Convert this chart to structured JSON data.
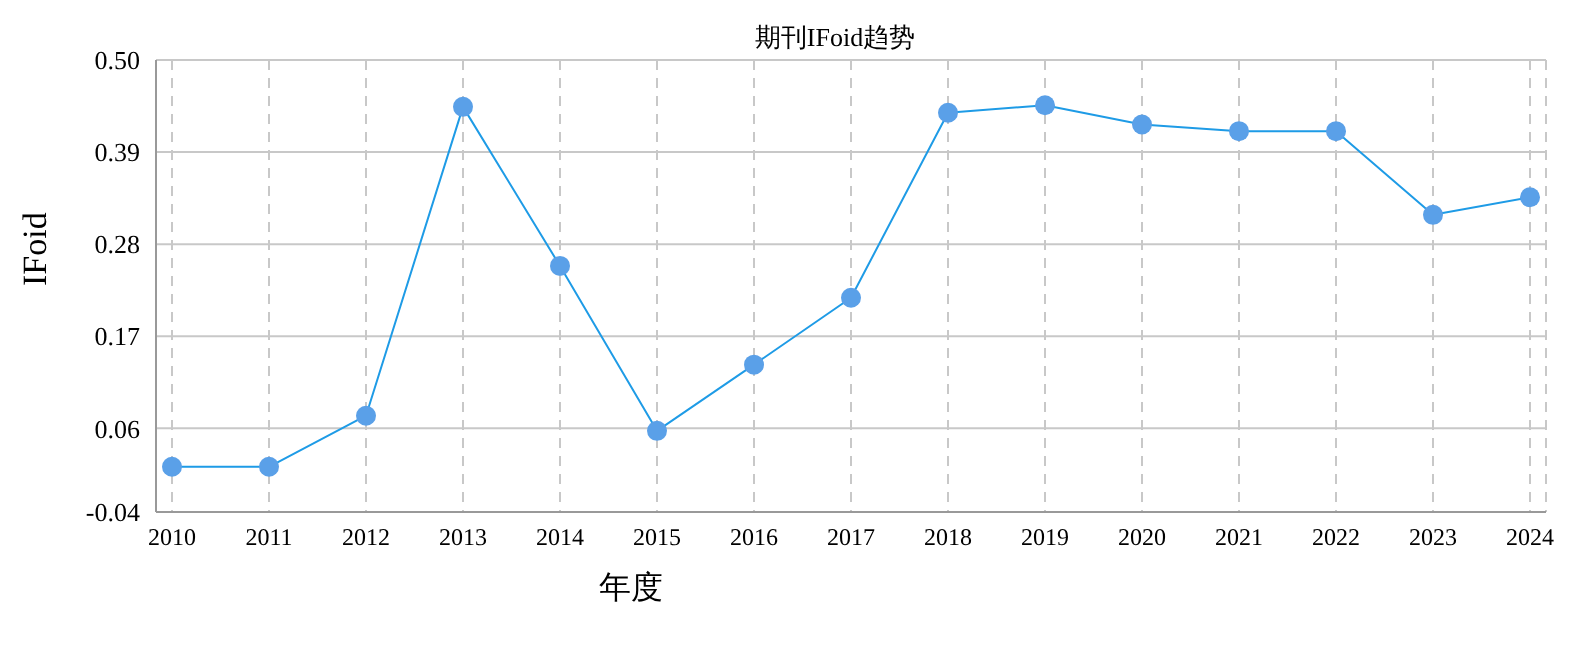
{
  "chart_data": {
    "type": "line",
    "title": "期刊IFoid趋势",
    "xlabel": "年度",
    "ylabel": "IFoid",
    "categories": [
      "2010",
      "2011",
      "2012",
      "2013",
      "2014",
      "2015",
      "2016",
      "2017",
      "2018",
      "2019",
      "2020",
      "2021",
      "2022",
      "2023",
      "2024"
    ],
    "series": [
      {
        "color": "#1e9be6",
        "values": [
          0.014,
          0.014,
          0.075,
          0.444,
          0.254,
          0.057,
          0.136,
          0.216,
          0.437,
          0.446,
          0.423,
          0.415,
          0.415,
          0.315,
          0.336
        ]
      }
    ],
    "ylim": [
      -0.04,
      0.5
    ],
    "yticks": [
      -0.04,
      0.06,
      0.17,
      0.28,
      0.39,
      {
        "value": 0.5,
        "label": "0.50"
      }
    ],
    "grid": true,
    "marker": "circle",
    "line_style": "solid",
    "legend": false
  }
}
